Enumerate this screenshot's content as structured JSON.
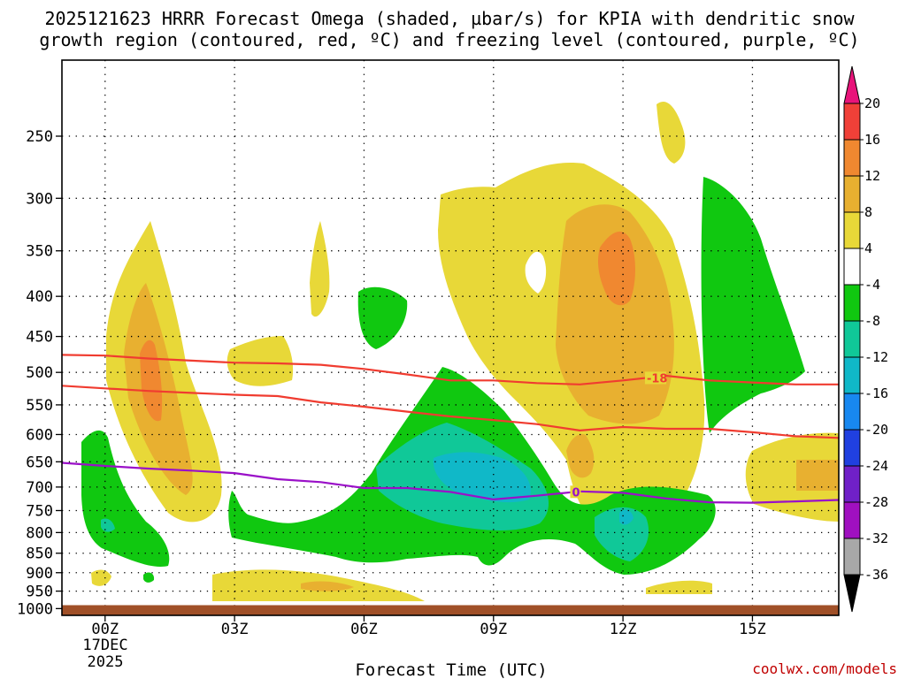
{
  "chart_data": {
    "type": "heatmap",
    "title_line1": "2025121623 HRRR Forecast Omega (shaded, µbar/s) for KPIA with dendritic snow",
    "title_line2": "growth region (contoured, red, ºC) and freezing level (contoured, purple, ºC)",
    "xlabel": "Forecast Time (UTC)",
    "ylabel": "",
    "x_range_hours": [
      -1,
      17
    ],
    "x_ticks": [
      "00Z",
      "03Z",
      "06Z",
      "09Z",
      "12Z",
      "15Z"
    ],
    "date_line1": "17DEC",
    "date_line2": "2025",
    "y_ticks_hpa": [
      "250",
      "300",
      "350",
      "400",
      "450",
      "500",
      "550",
      "600",
      "650",
      "700",
      "750",
      "800",
      "850",
      "900",
      "950",
      "1000"
    ],
    "y_range_hpa": [
      1020,
      200
    ],
    "colorbar_labels": [
      "20",
      "16",
      "12",
      "8",
      "4",
      "-4",
      "-8",
      "-12",
      "-16",
      "-20",
      "-24",
      "-28",
      "-32",
      "-36"
    ],
    "colorbar_colors": [
      "#e8147a",
      "#f04038",
      "#f08830",
      "#e8b030",
      "#e8d838",
      "#ffffff",
      "#10c810",
      "#10c898",
      "#10b8c8",
      "#1888f0",
      "#2040e0",
      "#7020c8",
      "#a010c0",
      "#a8a8a8",
      "#000000"
    ],
    "dendritic_upper_line": {
      "name": "-18 °C",
      "label": "-18",
      "color": "#f03c30",
      "x": [
        -1,
        0,
        1,
        2,
        3,
        4,
        5,
        6,
        7,
        8,
        9,
        10,
        11,
        12,
        13,
        14,
        15,
        16,
        17
      ],
      "hpa": [
        475,
        476,
        480,
        483,
        486,
        487,
        489,
        495,
        503,
        512,
        512,
        516,
        518,
        512,
        505,
        512,
        515,
        518,
        518
      ]
    },
    "dendritic_lower_line": {
      "name": "-12 °C",
      "color": "#f03c30",
      "x": [
        -1,
        0,
        1,
        2,
        3,
        4,
        5,
        6,
        7,
        8,
        9,
        10,
        11,
        12,
        13,
        14,
        15,
        16,
        17
      ],
      "hpa": [
        520,
        524,
        528,
        531,
        534,
        536,
        546,
        553,
        561,
        569,
        575,
        582,
        593,
        587,
        590,
        590,
        596,
        603,
        606
      ]
    },
    "freezing_line": {
      "name": "0 °C",
      "label": "0",
      "color": "#9a10c8",
      "x": [
        -1,
        0,
        1,
        2,
        3,
        4,
        5,
        6,
        7,
        8,
        9,
        10,
        11,
        12,
        13,
        14,
        15,
        16,
        17
      ],
      "hpa": [
        652,
        658,
        663,
        667,
        672,
        684,
        690,
        702,
        702,
        710,
        726,
        718,
        709,
        712,
        724,
        732,
        733,
        730,
        727
      ]
    },
    "ground_level_hpa": 990,
    "ground_color": "#a05028"
  },
  "credit": "coolwx.com/models",
  "credit_color": "#c00000"
}
